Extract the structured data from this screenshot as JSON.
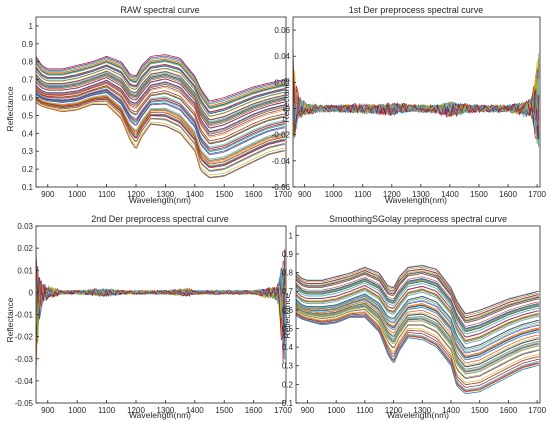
{
  "figure": {
    "background": "#ffffff",
    "line_colors": [
      "#0072bd",
      "#d95319",
      "#edb120",
      "#7e2f8e",
      "#77ac30",
      "#4dbeee",
      "#a2142f"
    ]
  },
  "chart_data": [
    {
      "type": "line",
      "title": "RAW spectral curve",
      "xlabel": "Wavelength(nm)",
      "ylabel": "Reflectance",
      "xlim": [
        860,
        1710
      ],
      "ylim": [
        0.1,
        1.05
      ],
      "xticks": [
        "900",
        "1000",
        "1100",
        "1200",
        "1300",
        "1400",
        "1500",
        "1600",
        "1700"
      ],
      "yticks": [
        "0.1",
        "0.2",
        "0.3",
        "0.4",
        "0.5",
        "0.6",
        "0.7",
        "0.8",
        "0.9",
        "1"
      ],
      "grid": false,
      "legend": "none",
      "series_count": "many overlaid spectra (approx. 150 samples)",
      "envelope": {
        "x": [
          860,
          880,
          900,
          950,
          1000,
          1050,
          1100,
          1150,
          1180,
          1200,
          1220,
          1250,
          1300,
          1350,
          1400,
          1420,
          1450,
          1500,
          1550,
          1600,
          1650,
          1700
        ],
        "upper": [
          0.83,
          0.78,
          0.76,
          0.76,
          0.78,
          0.8,
          0.83,
          0.8,
          0.73,
          0.72,
          0.78,
          0.83,
          0.84,
          0.82,
          0.72,
          0.65,
          0.58,
          0.6,
          0.63,
          0.66,
          0.68,
          0.7
        ],
        "median": [
          0.66,
          0.63,
          0.62,
          0.62,
          0.63,
          0.66,
          0.69,
          0.64,
          0.57,
          0.56,
          0.6,
          0.66,
          0.68,
          0.65,
          0.56,
          0.47,
          0.4,
          0.42,
          0.46,
          0.5,
          0.53,
          0.55
        ],
        "lower": [
          0.57,
          0.55,
          0.54,
          0.52,
          0.53,
          0.56,
          0.56,
          0.48,
          0.36,
          0.31,
          0.38,
          0.45,
          0.44,
          0.4,
          0.3,
          0.19,
          0.15,
          0.16,
          0.2,
          0.24,
          0.28,
          0.3
        ]
      }
    },
    {
      "type": "line",
      "title": "1st Der preprocess spectral curve",
      "xlabel": "Wavelength(nm)",
      "ylabel": "Reflectance",
      "xlim": [
        860,
        1710
      ],
      "ylim": [
        -0.06,
        0.07
      ],
      "xticks": [
        "900",
        "1000",
        "1100",
        "1200",
        "1300",
        "1400",
        "1500",
        "1600",
        "1700"
      ],
      "yticks": [
        "-0.06",
        "-0.04",
        "-0.02",
        "0",
        "0.02",
        "0.04",
        "0.06"
      ],
      "grid": false,
      "legend": "none",
      "series_count": "many overlaid spectra (approx. 150 samples)",
      "envelope": {
        "x": [
          860,
          870,
          880,
          900,
          950,
          1000,
          1100,
          1150,
          1200,
          1250,
          1300,
          1350,
          1400,
          1450,
          1500,
          1600,
          1680,
          1690,
          1700
        ],
        "upper": [
          0.05,
          0.02,
          0.01,
          0.005,
          0.003,
          0.003,
          0.004,
          0.003,
          0.005,
          0.004,
          0.003,
          0.003,
          0.006,
          0.004,
          0.003,
          0.003,
          0.008,
          0.02,
          0.045
        ],
        "median": [
          0.005,
          0.002,
          0.001,
          0.0,
          0.0,
          0.0,
          0.0,
          0.0,
          0.0,
          0.0,
          0.0,
          0.0,
          0.0,
          0.0,
          0.0,
          0.0,
          0.0,
          0.002,
          0.005
        ],
        "lower": [
          -0.045,
          -0.02,
          -0.01,
          -0.006,
          -0.003,
          -0.003,
          -0.004,
          -0.005,
          -0.006,
          -0.003,
          -0.003,
          -0.004,
          -0.008,
          -0.004,
          -0.003,
          -0.003,
          -0.008,
          -0.02,
          -0.04
        ]
      }
    },
    {
      "type": "line",
      "title": "2nd Der preprocess spectral curve",
      "xlabel": "Wavelength(nm)",
      "ylabel": "Reflectance",
      "xlim": [
        860,
        1710
      ],
      "ylim": [
        -0.05,
        0.03
      ],
      "xticks": [
        "900",
        "1000",
        "1100",
        "1200",
        "1300",
        "1400",
        "1500",
        "1600",
        "1700"
      ],
      "yticks": [
        "-0.05",
        "-0.04",
        "-0.03",
        "-0.02",
        "-0.01",
        "0",
        "0.01",
        "0.02",
        "0.03"
      ],
      "grid": false,
      "legend": "none",
      "series_count": "many overlaid spectra (approx. 150 samples)",
      "envelope": {
        "x": [
          860,
          870,
          880,
          900,
          930,
          950,
          1000,
          1100,
          1150,
          1200,
          1300,
          1380,
          1400,
          1450,
          1500,
          1600,
          1680,
          1690,
          1700
        ],
        "upper": [
          0.02,
          0.01,
          0.005,
          0.003,
          0.002,
          0.001,
          0.001,
          0.002,
          0.001,
          0.001,
          0.001,
          0.002,
          0.001,
          0.001,
          0.001,
          0.001,
          0.003,
          0.01,
          0.02
        ],
        "median": [
          0.0,
          0.0,
          0.0,
          0.0,
          0.0,
          0.0,
          0.0,
          0.0,
          0.0,
          0.0,
          0.0,
          0.0,
          0.0,
          0.0,
          0.0,
          0.0,
          0.0,
          0.0,
          0.0
        ],
        "lower": [
          -0.04,
          -0.015,
          -0.006,
          -0.003,
          -0.002,
          -0.001,
          -0.001,
          -0.002,
          -0.001,
          -0.001,
          -0.001,
          -0.002,
          -0.001,
          -0.001,
          -0.001,
          -0.001,
          -0.004,
          -0.015,
          -0.035
        ]
      }
    },
    {
      "type": "line",
      "title": "SmoothingSGolay preprocess spectral curve",
      "xlabel": "Wavelength(nm)",
      "ylabel": "Reflectance",
      "xlim": [
        860,
        1710
      ],
      "ylim": [
        0.1,
        1.05
      ],
      "xticks": [
        "900",
        "1000",
        "1100",
        "1200",
        "1300",
        "1400",
        "1500",
        "1600",
        "1700"
      ],
      "yticks": [
        "0.1",
        "0.2",
        "0.3",
        "0.4",
        "0.5",
        "0.6",
        "0.7",
        "0.8",
        "0.9",
        "1"
      ],
      "grid": false,
      "legend": "none",
      "series_count": "many overlaid spectra (approx. 150 samples)",
      "envelope": {
        "x": [
          860,
          880,
          900,
          950,
          1000,
          1050,
          1100,
          1150,
          1180,
          1200,
          1220,
          1250,
          1300,
          1350,
          1400,
          1420,
          1450,
          1500,
          1550,
          1600,
          1650,
          1700
        ],
        "upper": [
          0.8,
          0.77,
          0.76,
          0.76,
          0.78,
          0.8,
          0.83,
          0.8,
          0.73,
          0.72,
          0.78,
          0.83,
          0.84,
          0.82,
          0.72,
          0.65,
          0.58,
          0.6,
          0.63,
          0.66,
          0.68,
          0.7
        ],
        "median": [
          0.66,
          0.63,
          0.62,
          0.62,
          0.63,
          0.66,
          0.69,
          0.64,
          0.57,
          0.56,
          0.6,
          0.66,
          0.68,
          0.65,
          0.56,
          0.47,
          0.4,
          0.42,
          0.46,
          0.5,
          0.53,
          0.55
        ],
        "lower": [
          0.57,
          0.55,
          0.54,
          0.52,
          0.53,
          0.56,
          0.56,
          0.48,
          0.36,
          0.31,
          0.38,
          0.45,
          0.44,
          0.4,
          0.3,
          0.19,
          0.15,
          0.16,
          0.2,
          0.24,
          0.28,
          0.3
        ]
      }
    }
  ]
}
